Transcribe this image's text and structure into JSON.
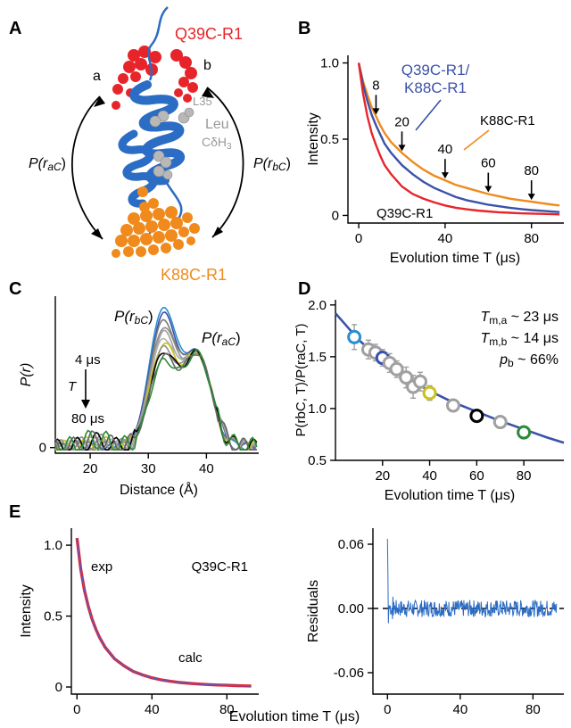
{
  "panel_labels": [
    "A",
    "B",
    "C",
    "D",
    "E"
  ],
  "panel_a": {
    "q39c_label": "Q39C-R1",
    "k88c_label": "K88C-R1",
    "site_a": "a",
    "site_b": "b",
    "dist_ac": "P(r",
    "dist_ac_sub": "aC",
    "dist_ac_close": ")",
    "dist_bc": "P(r",
    "dist_bc_sub": "bC",
    "dist_bc_close": ")",
    "l35_label": "L35",
    "leu_label": "Leu",
    "leu_sub": "CδH",
    "leu_sub3": "3",
    "colors": {
      "q39c": "#e8242b",
      "k88c": "#f08a1c",
      "helix": "#2b6cc4",
      "leu": "#b8b8b8"
    }
  },
  "chart_data": [
    {
      "id": "B",
      "type": "line",
      "xlabel": "Evolution time T (μs)",
      "ylabel": "Intensity",
      "xlim": [
        -5,
        95
      ],
      "ylim": [
        -0.05,
        1.05
      ],
      "xticks": [
        "0",
        "40",
        "80"
      ],
      "yticks": [
        "0",
        "0.5",
        "1.0"
      ],
      "series": [
        {
          "name": "Q39C-R1",
          "color": "#e8242b",
          "x": [
            0,
            2,
            4,
            6,
            8,
            10,
            12,
            15,
            20,
            25,
            30,
            35,
            40,
            45,
            50,
            55,
            60,
            65,
            70,
            75,
            80,
            85,
            90,
            93
          ],
          "y": [
            1.0,
            0.8,
            0.65,
            0.54,
            0.46,
            0.39,
            0.33,
            0.27,
            0.19,
            0.14,
            0.11,
            0.085,
            0.065,
            0.05,
            0.04,
            0.032,
            0.026,
            0.021,
            0.017,
            0.014,
            0.012,
            0.01,
            0.008,
            0.007
          ]
        },
        {
          "name": "Q39C-R1/\nK88C-R1",
          "color": "#3a52a8",
          "x": [
            0,
            2,
            4,
            6,
            8,
            10,
            12,
            15,
            20,
            25,
            30,
            35,
            40,
            45,
            50,
            55,
            60,
            65,
            70,
            75,
            80,
            85,
            90,
            93
          ],
          "y": [
            1.0,
            0.86,
            0.75,
            0.66,
            0.59,
            0.53,
            0.47,
            0.41,
            0.33,
            0.27,
            0.22,
            0.18,
            0.15,
            0.12,
            0.1,
            0.085,
            0.07,
            0.06,
            0.05,
            0.042,
            0.035,
            0.03,
            0.025,
            0.022
          ]
        },
        {
          "name": "K88C-R1",
          "color": "#f08a1c",
          "x": [
            0,
            2,
            4,
            6,
            8,
            10,
            12,
            15,
            20,
            25,
            30,
            35,
            40,
            45,
            50,
            55,
            60,
            65,
            70,
            75,
            80,
            85,
            90,
            93
          ],
          "y": [
            1.0,
            0.88,
            0.79,
            0.71,
            0.65,
            0.59,
            0.54,
            0.48,
            0.41,
            0.35,
            0.3,
            0.26,
            0.23,
            0.2,
            0.18,
            0.16,
            0.14,
            0.125,
            0.11,
            0.1,
            0.09,
            0.08,
            0.07,
            0.065
          ]
        }
      ],
      "markers": [
        {
          "label": "8",
          "x": 8,
          "color": "#2a8fd0"
        },
        {
          "label": "20",
          "x": 20,
          "color": "#3a52a8"
        },
        {
          "label": "40",
          "x": 40,
          "color": "#c9c21a"
        },
        {
          "label": "60",
          "x": 60,
          "color": "#000000"
        },
        {
          "label": "80",
          "x": 80,
          "color": "#2a8a3a"
        }
      ]
    },
    {
      "id": "C",
      "type": "line",
      "xlabel": "Distance (Å)",
      "ylabel": "P(r)",
      "xlim": [
        14,
        49
      ],
      "ylim": [
        -0.05,
        1.35
      ],
      "xticks": [
        "20",
        "30",
        "40"
      ],
      "peak_bc_label": "P(r",
      "peak_bc_sub": "bC",
      "peak_ac_label": "P(r",
      "peak_ac_sub": "aC",
      "close": ")",
      "time_top": "4 μs",
      "time_var": "T",
      "time_bottom": "80 μs",
      "series": [
        {
          "color": "#2a8fd0",
          "t": 4,
          "bc": 1.22
        },
        {
          "color": "#3a52a8",
          "t": 14,
          "bc": 1.16
        },
        {
          "color": "#7a7a7a",
          "t": 20,
          "bc": 1.1
        },
        {
          "color": "#8c8c8c",
          "t": 28,
          "bc": 1.04
        },
        {
          "color": "#a0a0a0",
          "t": 34,
          "bc": 0.99
        },
        {
          "color": "#b4b4b4",
          "t": 40,
          "bc": 0.94
        },
        {
          "color": "#c9c21a",
          "t": 48,
          "bc": 0.89
        },
        {
          "color": "#909090",
          "t": 55,
          "bc": 0.85
        },
        {
          "color": "#000000",
          "t": 60,
          "bc": 0.82
        },
        {
          "color": "#666666",
          "t": 70,
          "bc": 0.78
        },
        {
          "color": "#2a8a3a",
          "t": 80,
          "bc": 0.74
        }
      ],
      "ac_height": 0.82
    },
    {
      "id": "D",
      "type": "scatter",
      "xlabel": "Evolution time T (μs)",
      "ylabel": "P(rbC, T)/P(raC, T)",
      "xlim": [
        0,
        97
      ],
      "ylim": [
        0.5,
        2.05
      ],
      "xticks": [
        "20",
        "40",
        "60",
        "80"
      ],
      "yticks": [
        "0.5",
        "1.0",
        "1.5",
        "2.0"
      ],
      "ann1": "T",
      "ann1_sub": "m,a",
      "ann1_val": " ~ 23 μs",
      "ann2": "T",
      "ann2_sub": "m,b",
      "ann2_val": " ~ 14 μs",
      "ann3": "p",
      "ann3_sub": "b",
      "ann3_val": " ~ 66%",
      "fit": {
        "color": "#3a52a8",
        "x": [
          0,
          10,
          20,
          30,
          40,
          50,
          60,
          70,
          80,
          90,
          97
        ],
        "y": [
          1.92,
          1.66,
          1.46,
          1.3,
          1.17,
          1.06,
          0.97,
          0.88,
          0.8,
          0.72,
          0.67
        ]
      },
      "points": [
        {
          "x": 8,
          "y": 1.69,
          "err": 0.12,
          "color": "#2a8fd0"
        },
        {
          "x": 14,
          "y": 1.57,
          "err": 0.09,
          "color": "#a0a0a0"
        },
        {
          "x": 17,
          "y": 1.54,
          "err": 0.08,
          "color": "#a0a0a0"
        },
        {
          "x": 20,
          "y": 1.49,
          "err": 0.08,
          "color": "#3a52a8"
        },
        {
          "x": 23,
          "y": 1.44,
          "err": 0.09,
          "color": "#a0a0a0"
        },
        {
          "x": 26,
          "y": 1.38,
          "err": 0.08,
          "color": "#a0a0a0"
        },
        {
          "x": 30,
          "y": 1.3,
          "err": 0.1,
          "color": "#a0a0a0"
        },
        {
          "x": 33,
          "y": 1.21,
          "err": 0.11,
          "color": "#a0a0a0"
        },
        {
          "x": 36,
          "y": 1.26,
          "err": 0.09,
          "color": "#a0a0a0"
        },
        {
          "x": 40,
          "y": 1.15,
          "err": 0.07,
          "color": "#c9c21a"
        },
        {
          "x": 50,
          "y": 1.03,
          "err": 0.05,
          "color": "#a0a0a0"
        },
        {
          "x": 60,
          "y": 0.93,
          "err": 0.04,
          "color": "#000000"
        },
        {
          "x": 70,
          "y": 0.87,
          "err": 0.03,
          "color": "#a0a0a0"
        },
        {
          "x": 80,
          "y": 0.77,
          "err": 0.04,
          "color": "#2a8a3a"
        }
      ]
    },
    {
      "id": "E-left",
      "type": "line",
      "xlabel": "Evolution time T (μs)",
      "ylabel": "Intensity",
      "xlim": [
        -3,
        97
      ],
      "ylim": [
        -0.05,
        1.12
      ],
      "xticks": [
        "0",
        "40",
        "80"
      ],
      "yticks": [
        "0",
        "0.5",
        "1.0"
      ],
      "exp_label": "exp",
      "calc_label": "calc",
      "title": "Q39C-R1",
      "series": [
        {
          "name": "exp",
          "color": "#e8242b",
          "x": [
            0,
            2,
            4,
            6,
            8,
            10,
            12,
            15,
            20,
            25,
            30,
            35,
            40,
            45,
            50,
            55,
            60,
            65,
            70,
            75,
            80,
            85,
            90,
            93
          ],
          "y": [
            1.05,
            0.83,
            0.68,
            0.57,
            0.48,
            0.41,
            0.35,
            0.28,
            0.2,
            0.15,
            0.11,
            0.085,
            0.065,
            0.05,
            0.04,
            0.032,
            0.026,
            0.021,
            0.017,
            0.014,
            0.012,
            0.01,
            0.008,
            0.007
          ]
        },
        {
          "name": "calc",
          "color": "#5a5ac0",
          "x": [
            0,
            2,
            4,
            6,
            8,
            10,
            12,
            15,
            20,
            25,
            30,
            35,
            40,
            45,
            50,
            55,
            60,
            65,
            70,
            75,
            80,
            85,
            90,
            93
          ],
          "y": [
            1.05,
            0.83,
            0.68,
            0.57,
            0.48,
            0.41,
            0.35,
            0.28,
            0.2,
            0.15,
            0.11,
            0.085,
            0.065,
            0.05,
            0.04,
            0.032,
            0.026,
            0.021,
            0.017,
            0.014,
            0.012,
            0.01,
            0.008,
            0.007
          ]
        }
      ]
    },
    {
      "id": "E-right",
      "type": "line",
      "xlabel": "",
      "ylabel": "Residuals",
      "xlim": [
        -8,
        97
      ],
      "ylim": [
        -0.08,
        0.075
      ],
      "xticks": [
        "0",
        "40",
        "80"
      ],
      "yticks": [
        "0.06",
        "0.00",
        "-0.06"
      ],
      "series": [
        {
          "name": "residuals",
          "color": "#2b6cc4",
          "amplitude": 0.008
        }
      ]
    }
  ],
  "shared_xlabel": "Evolution time T (μs)"
}
